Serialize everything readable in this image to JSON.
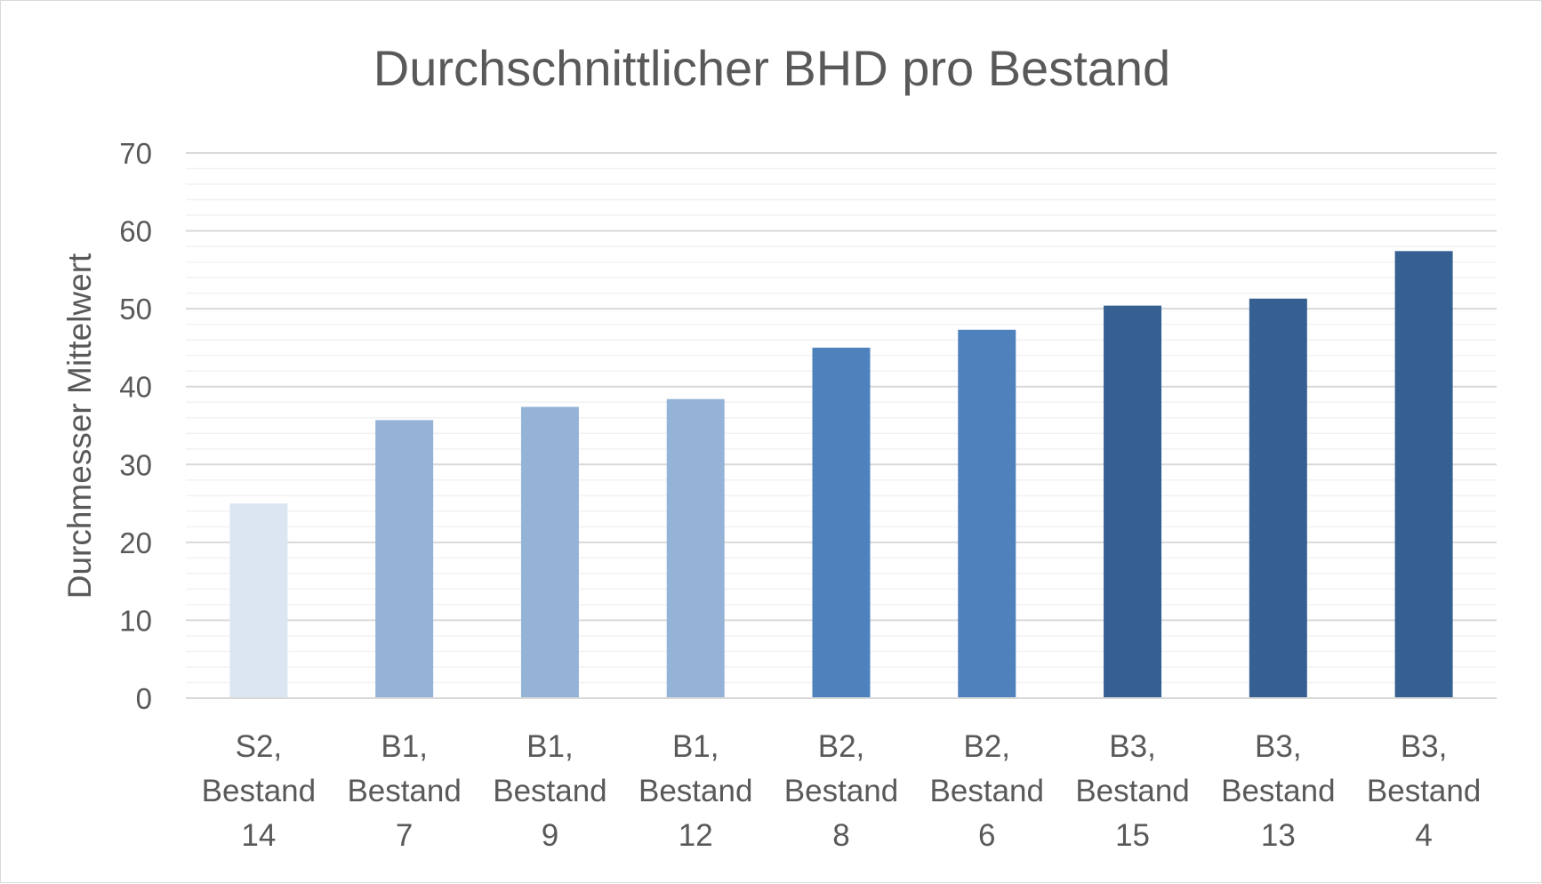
{
  "chart_data": {
    "type": "bar",
    "title": "Durchschnittlicher BHD pro Bestand",
    "xlabel": "",
    "ylabel": "Durchmesser Mittelwert",
    "ylim": [
      0,
      70
    ],
    "yticks": [
      "0",
      "10",
      "20",
      "30",
      "40",
      "50",
      "60",
      "70"
    ],
    "grid": true,
    "categories": [
      [
        "S2,",
        "Bestand",
        "14"
      ],
      [
        "B1,",
        "Bestand",
        "7"
      ],
      [
        "B1,",
        "Bestand",
        "9"
      ],
      [
        "B1,",
        "Bestand",
        "12"
      ],
      [
        "B2,",
        "Bestand",
        "8"
      ],
      [
        "B2,",
        "Bestand",
        "6"
      ],
      [
        "B3,",
        "Bestand",
        "15"
      ],
      [
        "B3,",
        "Bestand",
        "13"
      ],
      [
        "B3,",
        "Bestand",
        "4"
      ]
    ],
    "values": [
      25,
      35.7,
      37.4,
      38.4,
      45,
      47.3,
      50.4,
      51.3,
      57.4
    ],
    "colors": [
      "#dce6f2",
      "#95b3d7",
      "#95b3d7",
      "#95b3d7",
      "#4f81bd",
      "#4f81bd",
      "#366092",
      "#366092",
      "#366092"
    ]
  }
}
